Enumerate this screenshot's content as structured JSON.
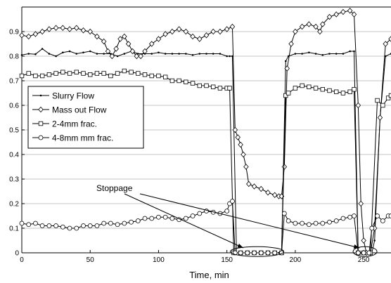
{
  "chart_data": {
    "type": "line",
    "title": "",
    "xlabel": "Time, min",
    "ylabel": "",
    "xlim": [
      0,
      270
    ],
    "ylim": [
      0,
      1.0
    ],
    "xticks": [
      0,
      50,
      100,
      150,
      200,
      250
    ],
    "yticks": [
      0,
      0.1,
      0.2,
      0.3,
      0.4,
      0.5,
      0.6,
      0.7,
      0.8,
      0.9
    ],
    "grid": "y-major",
    "legend_position": "center-left",
    "annotation": {
      "text": "Stoppage",
      "targets": [
        [
          172,
          0
        ],
        [
          250,
          0
        ]
      ]
    },
    "series": [
      {
        "name": "Slurry Flow",
        "marker": "dot",
        "points": [
          [
            0,
            0.805
          ],
          [
            5,
            0.81
          ],
          [
            10,
            0.808
          ],
          [
            15,
            0.83
          ],
          [
            20,
            0.81
          ],
          [
            25,
            0.8
          ],
          [
            30,
            0.815
          ],
          [
            35,
            0.82
          ],
          [
            40,
            0.81
          ],
          [
            45,
            0.815
          ],
          [
            50,
            0.82
          ],
          [
            55,
            0.81
          ],
          [
            60,
            0.81
          ],
          [
            65,
            0.81
          ],
          [
            70,
            0.8
          ],
          [
            75,
            0.81
          ],
          [
            80,
            0.82
          ],
          [
            85,
            0.81
          ],
          [
            90,
            0.81
          ],
          [
            95,
            0.81
          ],
          [
            100,
            0.815
          ],
          [
            105,
            0.81
          ],
          [
            110,
            0.81
          ],
          [
            115,
            0.81
          ],
          [
            120,
            0.81
          ],
          [
            125,
            0.805
          ],
          [
            130,
            0.81
          ],
          [
            135,
            0.81
          ],
          [
            140,
            0.81
          ],
          [
            145,
            0.81
          ],
          [
            150,
            0.8
          ],
          [
            152,
            0.8
          ],
          [
            154,
            0.8
          ],
          [
            157,
            0.0
          ],
          [
            160,
            0.0
          ],
          [
            165,
            0.0
          ],
          [
            170,
            0.0
          ],
          [
            175,
            0.0
          ],
          [
            180,
            0.0
          ],
          [
            185,
            0.0
          ],
          [
            188,
            0.0
          ],
          [
            190,
            0.0
          ],
          [
            193,
            0.78
          ],
          [
            195,
            0.8
          ],
          [
            200,
            0.81
          ],
          [
            205,
            0.81
          ],
          [
            210,
            0.815
          ],
          [
            215,
            0.81
          ],
          [
            220,
            0.805
          ],
          [
            225,
            0.81
          ],
          [
            230,
            0.81
          ],
          [
            235,
            0.81
          ],
          [
            240,
            0.82
          ],
          [
            243,
            0.82
          ],
          [
            246,
            0.0
          ],
          [
            248,
            0.0
          ],
          [
            250,
            0.0
          ],
          [
            253,
            0.0
          ],
          [
            256,
            0.0
          ],
          [
            258,
            0.05
          ],
          [
            262,
            0.55
          ],
          [
            266,
            0.8
          ],
          [
            270,
            0.81
          ]
        ]
      },
      {
        "name": "Mass out Flow",
        "marker": "diamond",
        "points": [
          [
            0,
            0.885
          ],
          [
            5,
            0.88
          ],
          [
            10,
            0.89
          ],
          [
            15,
            0.9
          ],
          [
            20,
            0.91
          ],
          [
            25,
            0.915
          ],
          [
            30,
            0.915
          ],
          [
            35,
            0.91
          ],
          [
            40,
            0.915
          ],
          [
            45,
            0.905
          ],
          [
            50,
            0.9
          ],
          [
            55,
            0.88
          ],
          [
            60,
            0.86
          ],
          [
            63,
            0.82
          ],
          [
            66,
            0.8
          ],
          [
            69,
            0.83
          ],
          [
            72,
            0.87
          ],
          [
            75,
            0.88
          ],
          [
            78,
            0.85
          ],
          [
            81,
            0.82
          ],
          [
            84,
            0.8
          ],
          [
            87,
            0.8
          ],
          [
            90,
            0.82
          ],
          [
            95,
            0.85
          ],
          [
            100,
            0.87
          ],
          [
            105,
            0.89
          ],
          [
            110,
            0.9
          ],
          [
            115,
            0.91
          ],
          [
            120,
            0.9
          ],
          [
            125,
            0.88
          ],
          [
            130,
            0.87
          ],
          [
            135,
            0.885
          ],
          [
            140,
            0.9
          ],
          [
            145,
            0.9
          ],
          [
            150,
            0.91
          ],
          [
            154,
            0.92
          ],
          [
            156,
            0.5
          ],
          [
            158,
            0.47
          ],
          [
            160,
            0.44
          ],
          [
            162,
            0.4
          ],
          [
            164,
            0.35
          ],
          [
            166,
            0.28
          ],
          [
            170,
            0.27
          ],
          [
            175,
            0.26
          ],
          [
            180,
            0.245
          ],
          [
            185,
            0.235
          ],
          [
            188,
            0.23
          ],
          [
            190,
            0.23
          ],
          [
            192,
            0.35
          ],
          [
            194,
            0.75
          ],
          [
            197,
            0.85
          ],
          [
            200,
            0.9
          ],
          [
            205,
            0.92
          ],
          [
            210,
            0.93
          ],
          [
            215,
            0.92
          ],
          [
            218,
            0.9
          ],
          [
            220,
            0.93
          ],
          [
            225,
            0.96
          ],
          [
            230,
            0.97
          ],
          [
            235,
            0.98
          ],
          [
            240,
            0.985
          ],
          [
            243,
            0.97
          ],
          [
            246,
            0.6
          ],
          [
            248,
            0.2
          ],
          [
            250,
            0.05
          ],
          [
            252,
            0.0
          ],
          [
            255,
            0.0
          ],
          [
            258,
            0.1
          ],
          [
            262,
            0.55
          ],
          [
            266,
            0.85
          ],
          [
            270,
            0.87
          ]
        ]
      },
      {
        "name": "2-4mm frac.",
        "marker": "square",
        "points": [
          [
            0,
            0.72
          ],
          [
            5,
            0.73
          ],
          [
            10,
            0.72
          ],
          [
            15,
            0.72
          ],
          [
            20,
            0.725
          ],
          [
            25,
            0.73
          ],
          [
            30,
            0.735
          ],
          [
            35,
            0.73
          ],
          [
            40,
            0.735
          ],
          [
            45,
            0.73
          ],
          [
            50,
            0.725
          ],
          [
            55,
            0.73
          ],
          [
            60,
            0.73
          ],
          [
            65,
            0.72
          ],
          [
            70,
            0.73
          ],
          [
            75,
            0.74
          ],
          [
            80,
            0.735
          ],
          [
            85,
            0.73
          ],
          [
            90,
            0.725
          ],
          [
            95,
            0.72
          ],
          [
            100,
            0.72
          ],
          [
            105,
            0.715
          ],
          [
            110,
            0.7
          ],
          [
            115,
            0.7
          ],
          [
            120,
            0.695
          ],
          [
            125,
            0.69
          ],
          [
            130,
            0.68
          ],
          [
            135,
            0.68
          ],
          [
            140,
            0.675
          ],
          [
            145,
            0.67
          ],
          [
            150,
            0.67
          ],
          [
            152,
            0.67
          ],
          [
            155,
            0.0
          ],
          [
            160,
            0.0
          ],
          [
            165,
            0.0
          ],
          [
            170,
            0.0
          ],
          [
            175,
            0.0
          ],
          [
            180,
            0.0
          ],
          [
            185,
            0.0
          ],
          [
            190,
            0.0
          ],
          [
            193,
            0.64
          ],
          [
            195,
            0.65
          ],
          [
            200,
            0.67
          ],
          [
            205,
            0.68
          ],
          [
            210,
            0.675
          ],
          [
            215,
            0.67
          ],
          [
            220,
            0.665
          ],
          [
            225,
            0.66
          ],
          [
            230,
            0.655
          ],
          [
            235,
            0.65
          ],
          [
            240,
            0.655
          ],
          [
            243,
            0.665
          ],
          [
            246,
            0.0
          ],
          [
            250,
            0.0
          ],
          [
            255,
            0.0
          ],
          [
            260,
            0.62
          ],
          [
            264,
            0.6
          ],
          [
            268,
            0.63
          ],
          [
            270,
            0.64
          ]
        ]
      },
      {
        "name": "4-8mm mm frac.",
        "marker": "circle",
        "points": [
          [
            0,
            0.12
          ],
          [
            5,
            0.115
          ],
          [
            10,
            0.12
          ],
          [
            15,
            0.11
          ],
          [
            20,
            0.11
          ],
          [
            25,
            0.11
          ],
          [
            30,
            0.105
          ],
          [
            35,
            0.1
          ],
          [
            40,
            0.1
          ],
          [
            45,
            0.11
          ],
          [
            50,
            0.11
          ],
          [
            55,
            0.11
          ],
          [
            60,
            0.12
          ],
          [
            65,
            0.12
          ],
          [
            70,
            0.115
          ],
          [
            75,
            0.12
          ],
          [
            80,
            0.125
          ],
          [
            85,
            0.13
          ],
          [
            90,
            0.14
          ],
          [
            95,
            0.14
          ],
          [
            100,
            0.145
          ],
          [
            105,
            0.145
          ],
          [
            110,
            0.14
          ],
          [
            115,
            0.135
          ],
          [
            120,
            0.14
          ],
          [
            125,
            0.15
          ],
          [
            130,
            0.16
          ],
          [
            135,
            0.17
          ],
          [
            140,
            0.165
          ],
          [
            145,
            0.16
          ],
          [
            150,
            0.17
          ],
          [
            152,
            0.2
          ],
          [
            154,
            0.21
          ],
          [
            156,
            0.0
          ],
          [
            160,
            0.0
          ],
          [
            165,
            0.0
          ],
          [
            170,
            0.0
          ],
          [
            175,
            0.0
          ],
          [
            180,
            0.0
          ],
          [
            185,
            0.0
          ],
          [
            190,
            0.0
          ],
          [
            192,
            0.16
          ],
          [
            195,
            0.13
          ],
          [
            200,
            0.12
          ],
          [
            205,
            0.12
          ],
          [
            210,
            0.115
          ],
          [
            215,
            0.12
          ],
          [
            220,
            0.12
          ],
          [
            225,
            0.125
          ],
          [
            230,
            0.13
          ],
          [
            235,
            0.14
          ],
          [
            240,
            0.145
          ],
          [
            243,
            0.15
          ],
          [
            246,
            0.0
          ],
          [
            250,
            0.0
          ],
          [
            254,
            0.0
          ],
          [
            256,
            0.1
          ],
          [
            260,
            0.15
          ],
          [
            264,
            0.13
          ],
          [
            268,
            0.15
          ],
          [
            270,
            0.15
          ]
        ]
      }
    ]
  }
}
